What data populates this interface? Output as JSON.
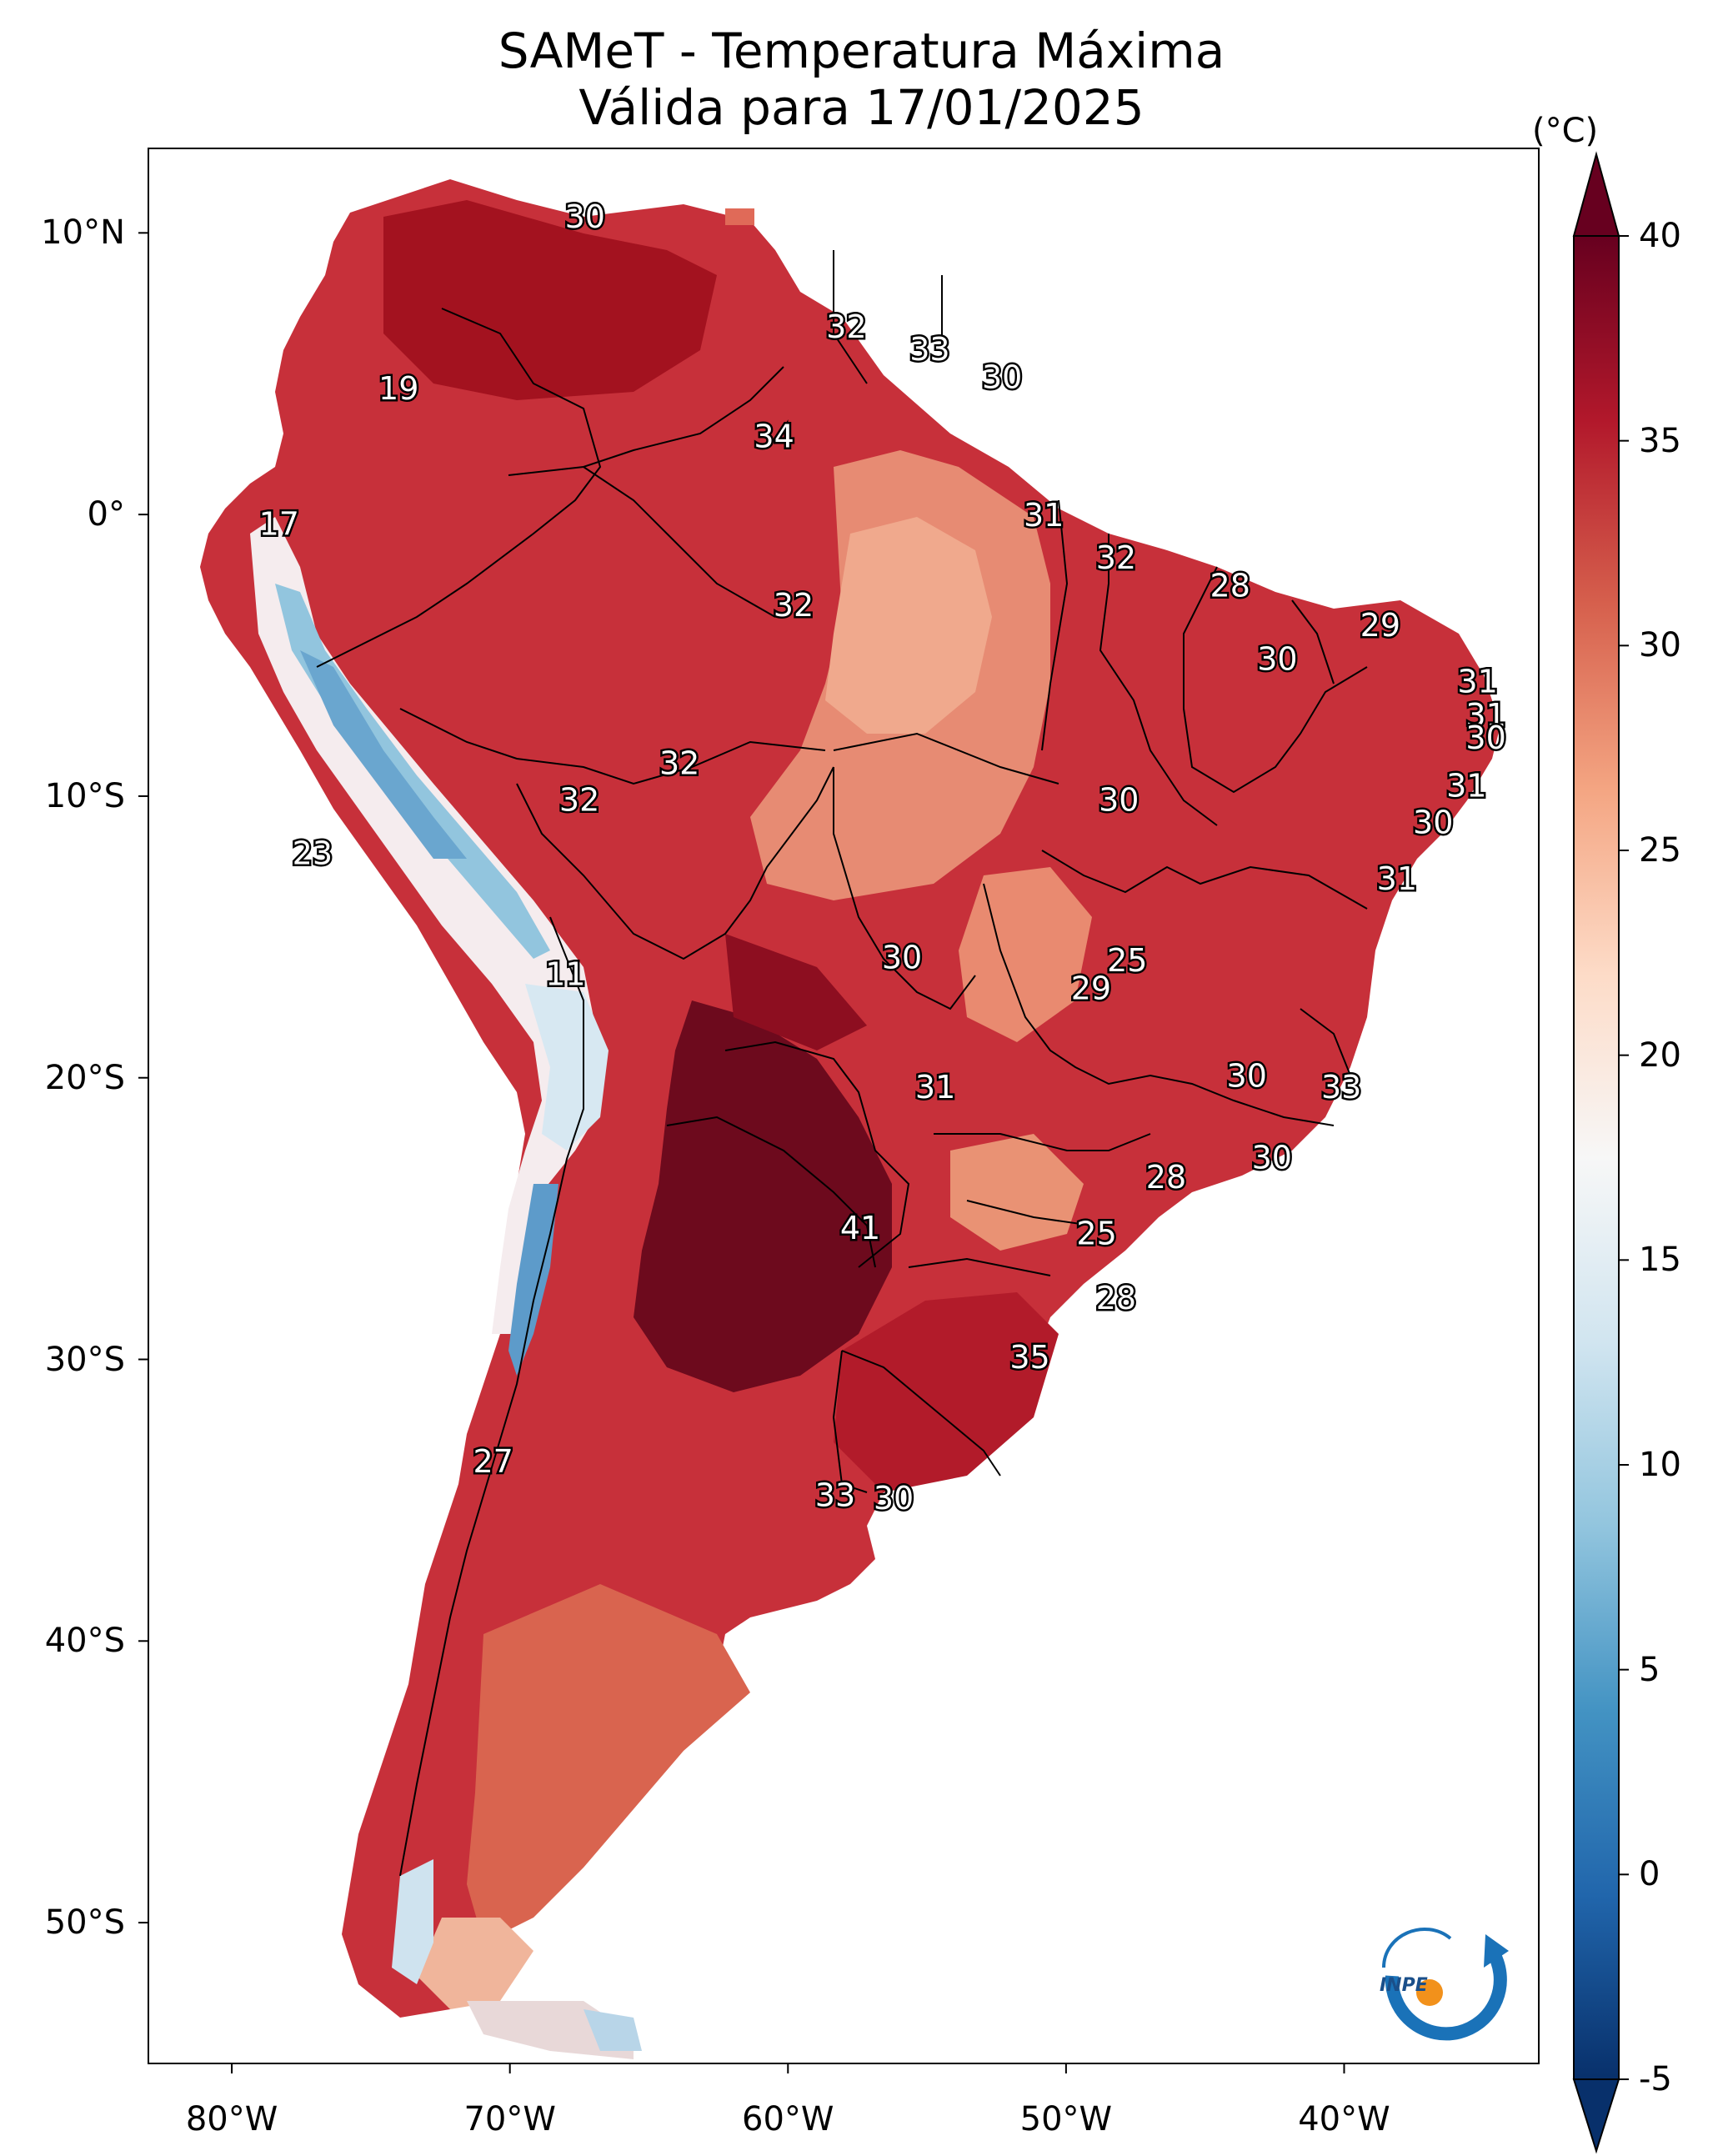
{
  "title": "SAMeT - Temperatura Máxima",
  "subtitle": "Válida para 17/01/2025",
  "colorbar": {
    "unit": "(°C)",
    "ticks": [
      "40",
      "35",
      "30",
      "25",
      "20",
      "15",
      "10",
      "5",
      "0",
      "-5"
    ],
    "colors": [
      "#08306b",
      "#2166ac",
      "#4393c3",
      "#92c5de",
      "#d1e5f0",
      "#f7f7f7",
      "#fddbc7",
      "#f4a582",
      "#d6604d",
      "#b2182b",
      "#67001f"
    ]
  },
  "axes": {
    "lat_ticks": [
      "10°N",
      "0°",
      "10°S",
      "20°S",
      "30°S",
      "40°S",
      "50°S"
    ],
    "lon_ticks": [
      "80°W",
      "70°W",
      "60°W",
      "50°W",
      "40°W"
    ]
  },
  "labels": [
    {
      "v": "30",
      "lon": -67.3,
      "lat": 10.6
    },
    {
      "v": "32",
      "lon": -57.9,
      "lat": 6.7
    },
    {
      "v": "33",
      "lon": -54.9,
      "lat": 5.9
    },
    {
      "v": "30",
      "lon": -52.3,
      "lat": 4.9
    },
    {
      "v": "19",
      "lon": -74.0,
      "lat": 4.5
    },
    {
      "v": "34",
      "lon": -60.5,
      "lat": 2.8
    },
    {
      "v": "17",
      "lon": -78.3,
      "lat": -0.3
    },
    {
      "v": "31",
      "lon": -50.8,
      "lat": 0.0
    },
    {
      "v": "32",
      "lon": -48.2,
      "lat": -1.5
    },
    {
      "v": "28",
      "lon": -44.1,
      "lat": -2.5
    },
    {
      "v": "32",
      "lon": -59.8,
      "lat": -3.2
    },
    {
      "v": "29",
      "lon": -38.7,
      "lat": -3.9
    },
    {
      "v": "30",
      "lon": -42.4,
      "lat": -5.1
    },
    {
      "v": "31",
      "lon": -35.2,
      "lat": -5.9
    },
    {
      "v": "31",
      "lon": -34.9,
      "lat": -7.1
    },
    {
      "v": "30",
      "lon": -34.9,
      "lat": -7.9
    },
    {
      "v": "32",
      "lon": -63.9,
      "lat": -8.8
    },
    {
      "v": "31",
      "lon": -35.6,
      "lat": -9.6
    },
    {
      "v": "32",
      "lon": -67.5,
      "lat": -10.1
    },
    {
      "v": "30",
      "lon": -48.1,
      "lat": -10.1
    },
    {
      "v": "30",
      "lon": -36.8,
      "lat": -10.9
    },
    {
      "v": "23",
      "lon": -77.1,
      "lat": -12.0
    },
    {
      "v": "31",
      "lon": -38.1,
      "lat": -12.9
    },
    {
      "v": "30",
      "lon": -55.9,
      "lat": -15.7
    },
    {
      "v": "25",
      "lon": -47.8,
      "lat": -15.8
    },
    {
      "v": "11",
      "lon": -68.0,
      "lat": -16.3
    },
    {
      "v": "29",
      "lon": -49.1,
      "lat": -16.8
    },
    {
      "v": "30",
      "lon": -43.5,
      "lat": -19.9
    },
    {
      "v": "33",
      "lon": -40.1,
      "lat": -20.3
    },
    {
      "v": "31",
      "lon": -54.7,
      "lat": -20.3
    },
    {
      "v": "30",
      "lon": -42.6,
      "lat": -22.8
    },
    {
      "v": "28",
      "lon": -46.4,
      "lat": -23.5
    },
    {
      "v": "41",
      "lon": -57.4,
      "lat": -25.3
    },
    {
      "v": "25",
      "lon": -48.9,
      "lat": -25.5
    },
    {
      "v": "28",
      "lon": -48.2,
      "lat": -27.8
    },
    {
      "v": "35",
      "lon": -51.3,
      "lat": -29.9
    },
    {
      "v": "27",
      "lon": -70.6,
      "lat": -33.6
    },
    {
      "v": "33",
      "lon": -58.3,
      "lat": -34.8
    },
    {
      "v": "30",
      "lon": -56.2,
      "lat": -34.9
    }
  ],
  "logo": {
    "text": "INPE"
  }
}
